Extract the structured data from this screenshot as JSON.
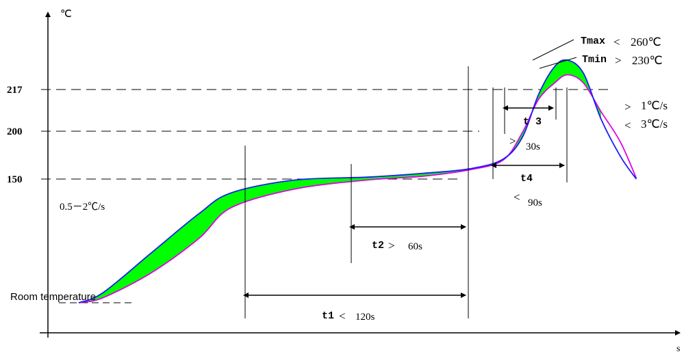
{
  "chart_data": {
    "type": "area",
    "title": "",
    "ylabel": "℃",
    "xlabel": "s",
    "y_ticks": [
      "217",
      "200",
      "150"
    ],
    "legend": "none",
    "grid": false,
    "room_temperature_label": "Room temperature",
    "series": [
      {
        "label_markup": "Tmax",
        "limit_sign": "<",
        "limit_text": "260℃",
        "color": "#1a1aff",
        "values": [
          [
            0,
            25
          ],
          [
            15,
            35
          ],
          [
            45,
            75
          ],
          [
            75,
            115
          ],
          [
            95,
            136
          ],
          [
            135,
            149
          ],
          [
            180,
            152
          ],
          [
            215,
            156
          ],
          [
            245,
            161
          ],
          [
            265,
            171
          ],
          [
            277,
            194
          ],
          [
            287,
            215
          ],
          [
            297,
            231
          ],
          [
            305,
            235
          ],
          [
            315,
            227
          ],
          [
            326,
            205
          ],
          [
            338,
            174
          ],
          [
            348,
            150
          ]
        ]
      },
      {
        "label_markup": "Tmin",
        "limit_sign": ">",
        "limit_text": "230℃",
        "color": "#e000e0",
        "values": [
          [
            0,
            25
          ],
          [
            15,
            30
          ],
          [
            45,
            55
          ],
          [
            75,
            90
          ],
          [
            95,
            121
          ],
          [
            135,
            140
          ],
          [
            180,
            149
          ],
          [
            215,
            153
          ],
          [
            245,
            160
          ],
          [
            265,
            170
          ],
          [
            277,
            199
          ],
          [
            287,
            213
          ],
          [
            297,
            221
          ],
          [
            305,
            226
          ],
          [
            315,
            221
          ],
          [
            326,
            208
          ],
          [
            338,
            189
          ],
          [
            348,
            151
          ]
        ]
      }
    ],
    "fill_color": "#00ff00",
    "annotations": {
      "rate_ramp": "0.5－2℃/s",
      "rate_cool_min_sign": ">",
      "rate_cool_min": "1℃/s",
      "rate_cool_max_sign": "<",
      "rate_cool_max": "3℃/s",
      "t1_label": "t1",
      "t1_sign": "<",
      "t1_value": "120s",
      "t2_label": "t2",
      "t2_sign": ">",
      "t2_value": "60s",
      "t3_label": "t 3",
      "t3_sign": ">",
      "t3_value": "30s",
      "t4_label": "t4",
      "t4_sign": "<",
      "t4_value": "90s",
      "tmax_label": "Tmax",
      "tmax_sign": "<",
      "tmax_value": "260℃",
      "tmin_label": "Tmin",
      "tmin_sign": ">",
      "tmin_value": "230℃"
    }
  }
}
